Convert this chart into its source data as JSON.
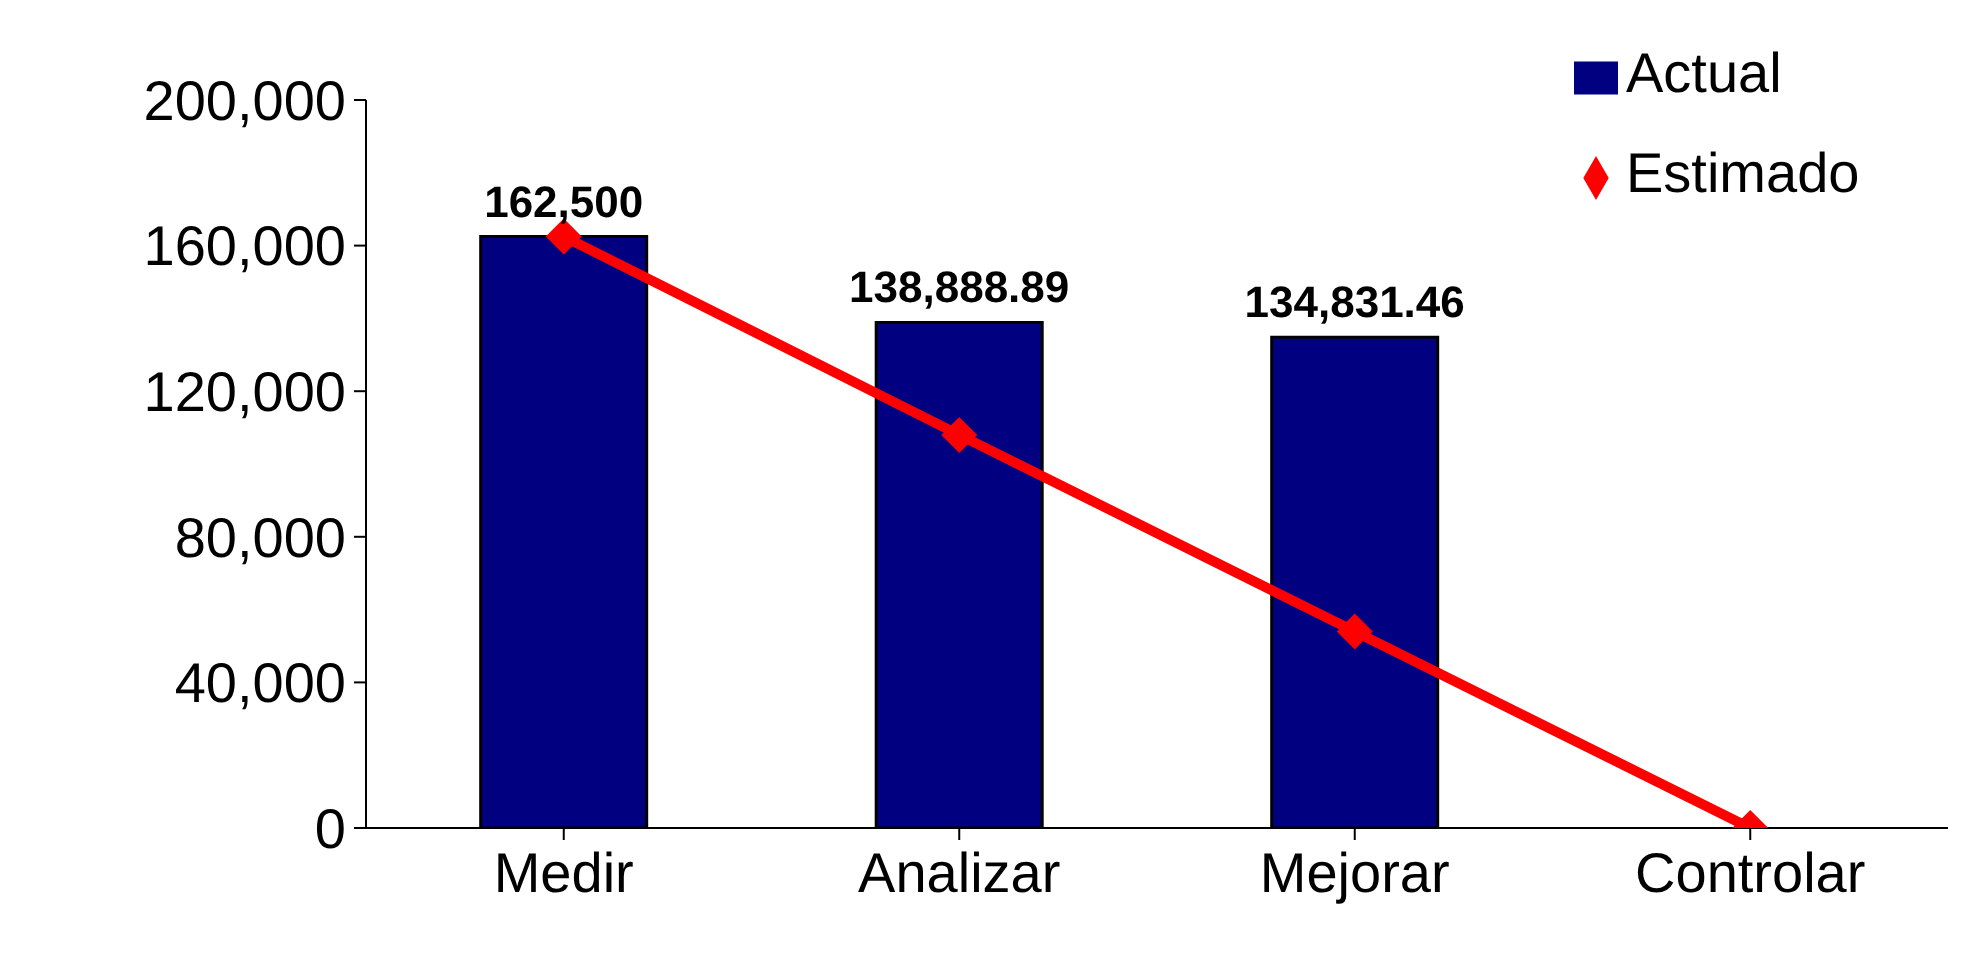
{
  "chart_data": {
    "type": "bar",
    "categories": [
      "Medir",
      "Analizar",
      "Mejorar",
      "Controlar"
    ],
    "series": [
      {
        "name": "Actual",
        "color": "#000080",
        "values": [
          162500,
          138888.89,
          134831.46,
          null
        ],
        "value_labels": [
          "162,500",
          "138,888.89",
          "134,831.46",
          null
        ]
      },
      {
        "name": "Estimado",
        "type": "line",
        "color": "#ff0000",
        "values": [
          162500,
          108000,
          54000,
          0
        ]
      }
    ],
    "ylim": [
      0,
      200000
    ],
    "yticks": [
      0,
      {
        "value": 40000,
        "label": "40,000"
      },
      {
        "value": 80000,
        "label": "80,000"
      },
      {
        "value": 120000,
        "label": "120,000"
      },
      {
        "value": 160000,
        "label": "160,000"
      },
      {
        "value": 200000,
        "label": "200,000"
      }
    ],
    "legend": "top right",
    "marker": "diamond"
  }
}
